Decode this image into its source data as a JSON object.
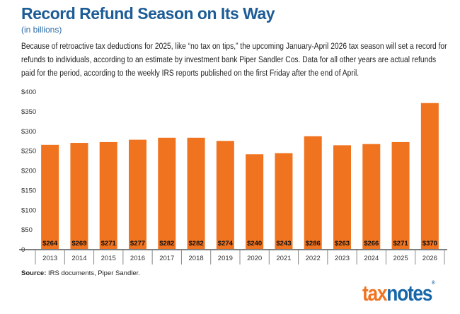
{
  "header": {
    "title": "Record Refund Season on Its Way",
    "subtitle": "(in billions)",
    "description": "Because of retroactive tax deductions for 2025, like “no tax on tips,” the upcoming January-April 2026 tax season will set a record for refunds to individuals, according to an estimate by investment bank Piper Sandler Cos. Data for all other years are actual refunds paid for the period, according to the weekly IRS reports published on the first Friday after the end of April."
  },
  "footer": {
    "source_label": "Source:",
    "source_text": " IRS documents, Piper Sandler.",
    "logo_part1": "tax",
    "logo_part2": "notes",
    "logo_mark": "®"
  },
  "chart_data": {
    "type": "bar",
    "categories": [
      "2013",
      "2014",
      "2015",
      "2016",
      "2017",
      "2018",
      "2019",
      "2020",
      "2021",
      "2022",
      "2023",
      "2024",
      "2025",
      "2026"
    ],
    "values": [
      264,
      269,
      271,
      277,
      282,
      282,
      274,
      240,
      243,
      286,
      263,
      266,
      271,
      370
    ],
    "data_labels": [
      "$264",
      "$269",
      "$271",
      "$277",
      "$282",
      "$282",
      "$274",
      "$240",
      "$243",
      "$286",
      "$263",
      "$266",
      "$271",
      "$370"
    ],
    "yticks": [
      0,
      50,
      100,
      150,
      200,
      250,
      300,
      350,
      400
    ],
    "ytick_labels": [
      "0",
      "$50",
      "$100",
      "$150",
      "$200",
      "$250",
      "$300",
      "$350",
      "$400"
    ],
    "ylim": [
      0,
      400
    ],
    "grid": false,
    "bar_color": "#f07320",
    "title": "Record Refund Season on Its Way",
    "xlabel": "",
    "ylabel": ""
  }
}
